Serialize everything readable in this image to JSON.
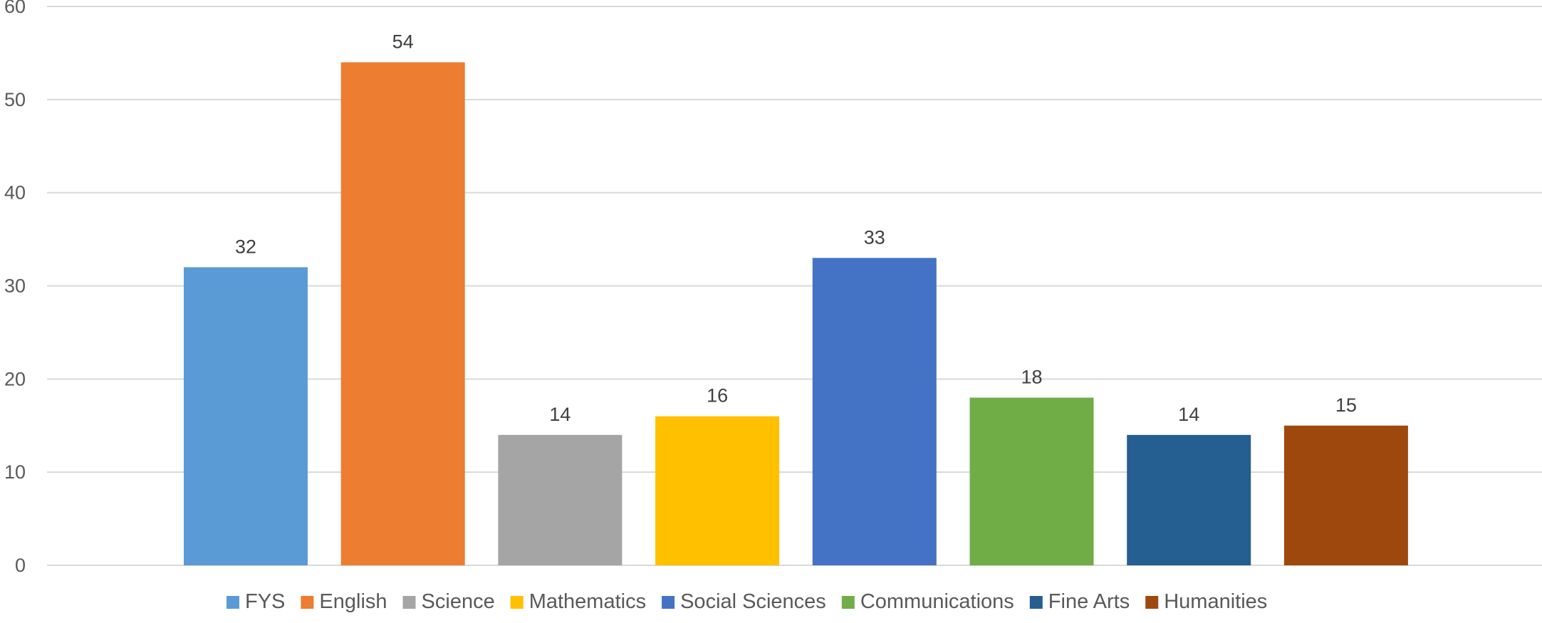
{
  "chart_data": {
    "type": "bar",
    "categories": [
      "FYS",
      "English",
      "Science",
      "Mathematics",
      "Social Sciences",
      "Communications",
      "Fine Arts",
      "Humanities"
    ],
    "values": [
      32,
      54,
      14,
      16,
      33,
      18,
      14,
      15
    ],
    "colors": [
      "#5B9BD5",
      "#ED7D31",
      "#A5A5A5",
      "#FFC000",
      "#4472C4",
      "#70AD47",
      "#255E91",
      "#9E480E"
    ],
    "ylim": [
      0,
      60
    ],
    "yticks": [
      0,
      10,
      20,
      30,
      40,
      50,
      60
    ],
    "grid": true,
    "legend_position": "bottom",
    "data_labels": true
  }
}
